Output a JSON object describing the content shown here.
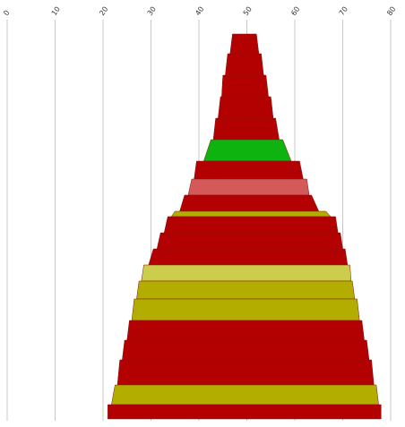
{
  "chart_data": {
    "type": "funnel",
    "title": "",
    "xlabel": "",
    "ylabel": "",
    "xlim": [
      0,
      80
    ],
    "x_ticks": [
      0,
      10,
      20,
      30,
      40,
      50,
      60,
      70,
      80
    ],
    "x_tick_labels": [
      "0",
      "10",
      "20",
      "30",
      "40",
      "50",
      "60",
      "70",
      "80"
    ],
    "grid": true,
    "legend": "none",
    "colors": {
      "red": "#b30000",
      "green": "#0fb30f",
      "olive": "#b3ad00",
      "pale_olive": "#cccc4d",
      "pink": "#d45a5a"
    },
    "layers": [
      {
        "left": 47.0,
        "right": 52.0,
        "height": 22,
        "color": "red"
      },
      {
        "left": 46.0,
        "right": 53.0,
        "height": 24,
        "color": "red"
      },
      {
        "left": 45.0,
        "right": 54.0,
        "height": 24,
        "color": "red"
      },
      {
        "left": 44.5,
        "right": 55.0,
        "height": 24,
        "color": "red"
      },
      {
        "left": 43.5,
        "right": 56.0,
        "height": 24,
        "color": "red"
      },
      {
        "left": 42.5,
        "right": 57.5,
        "height": 24,
        "color": "green"
      },
      {
        "left": 39.5,
        "right": 61.0,
        "height": 20,
        "color": "red"
      },
      {
        "left": 38.5,
        "right": 62.5,
        "height": 18,
        "color": "pink"
      },
      {
        "left": 37.0,
        "right": 63.5,
        "height": 18,
        "color": "red"
      },
      {
        "left": 35.0,
        "right": 66.5,
        "height": 6,
        "color": "olive"
      },
      {
        "left": 33.5,
        "right": 68.5,
        "height": 18,
        "color": "red"
      },
      {
        "left": 32.0,
        "right": 69.5,
        "height": 18,
        "color": "red"
      },
      {
        "left": 30.5,
        "right": 70.5,
        "height": 18,
        "color": "red"
      },
      {
        "left": 28.5,
        "right": 71.5,
        "height": 18,
        "color": "pale_olive"
      },
      {
        "left": 27.5,
        "right": 72.0,
        "height": 20,
        "color": "olive"
      },
      {
        "left": 26.5,
        "right": 73.0,
        "height": 24,
        "color": "olive"
      },
      {
        "left": 25.5,
        "right": 74.0,
        "height": 22,
        "color": "red"
      },
      {
        "left": 24.5,
        "right": 75.0,
        "height": 22,
        "color": "red"
      },
      {
        "left": 23.5,
        "right": 76.0,
        "height": 28,
        "color": "red"
      },
      {
        "left": 22.5,
        "right": 77.0,
        "height": 22,
        "color": "olive"
      },
      {
        "left": 21.0,
        "right": 78.0,
        "height": 16,
        "color": "red"
      }
    ]
  }
}
